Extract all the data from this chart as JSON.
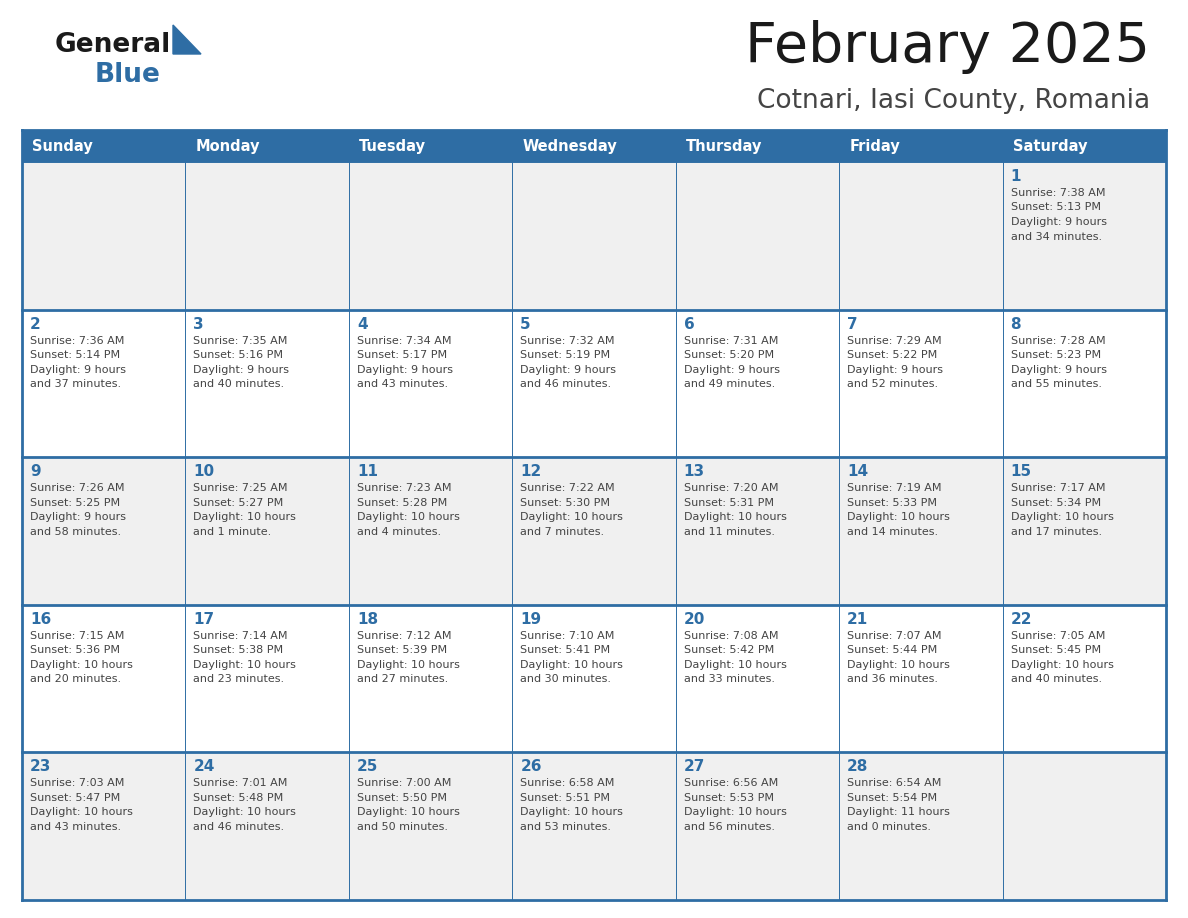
{
  "title": "February 2025",
  "subtitle": "Cotnari, Iasi County, Romania",
  "header_bg": "#2E6DA4",
  "header_text_color": "#FFFFFF",
  "row_bg_odd": "#F0F0F0",
  "row_bg_even": "#FFFFFF",
  "day_number_color": "#2E6DA4",
  "cell_text_color": "#444444",
  "border_color": "#2E6DA4",
  "days_of_week": [
    "Sunday",
    "Monday",
    "Tuesday",
    "Wednesday",
    "Thursday",
    "Friday",
    "Saturday"
  ],
  "logo_triangle_color": "#2E6DA4",
  "weeks": [
    [
      {
        "day": null,
        "lines": []
      },
      {
        "day": null,
        "lines": []
      },
      {
        "day": null,
        "lines": []
      },
      {
        "day": null,
        "lines": []
      },
      {
        "day": null,
        "lines": []
      },
      {
        "day": null,
        "lines": []
      },
      {
        "day": 1,
        "lines": [
          "Sunrise: 7:38 AM",
          "Sunset: 5:13 PM",
          "Daylight: 9 hours",
          "and 34 minutes."
        ]
      }
    ],
    [
      {
        "day": 2,
        "lines": [
          "Sunrise: 7:36 AM",
          "Sunset: 5:14 PM",
          "Daylight: 9 hours",
          "and 37 minutes."
        ]
      },
      {
        "day": 3,
        "lines": [
          "Sunrise: 7:35 AM",
          "Sunset: 5:16 PM",
          "Daylight: 9 hours",
          "and 40 minutes."
        ]
      },
      {
        "day": 4,
        "lines": [
          "Sunrise: 7:34 AM",
          "Sunset: 5:17 PM",
          "Daylight: 9 hours",
          "and 43 minutes."
        ]
      },
      {
        "day": 5,
        "lines": [
          "Sunrise: 7:32 AM",
          "Sunset: 5:19 PM",
          "Daylight: 9 hours",
          "and 46 minutes."
        ]
      },
      {
        "day": 6,
        "lines": [
          "Sunrise: 7:31 AM",
          "Sunset: 5:20 PM",
          "Daylight: 9 hours",
          "and 49 minutes."
        ]
      },
      {
        "day": 7,
        "lines": [
          "Sunrise: 7:29 AM",
          "Sunset: 5:22 PM",
          "Daylight: 9 hours",
          "and 52 minutes."
        ]
      },
      {
        "day": 8,
        "lines": [
          "Sunrise: 7:28 AM",
          "Sunset: 5:23 PM",
          "Daylight: 9 hours",
          "and 55 minutes."
        ]
      }
    ],
    [
      {
        "day": 9,
        "lines": [
          "Sunrise: 7:26 AM",
          "Sunset: 5:25 PM",
          "Daylight: 9 hours",
          "and 58 minutes."
        ]
      },
      {
        "day": 10,
        "lines": [
          "Sunrise: 7:25 AM",
          "Sunset: 5:27 PM",
          "Daylight: 10 hours",
          "and 1 minute."
        ]
      },
      {
        "day": 11,
        "lines": [
          "Sunrise: 7:23 AM",
          "Sunset: 5:28 PM",
          "Daylight: 10 hours",
          "and 4 minutes."
        ]
      },
      {
        "day": 12,
        "lines": [
          "Sunrise: 7:22 AM",
          "Sunset: 5:30 PM",
          "Daylight: 10 hours",
          "and 7 minutes."
        ]
      },
      {
        "day": 13,
        "lines": [
          "Sunrise: 7:20 AM",
          "Sunset: 5:31 PM",
          "Daylight: 10 hours",
          "and 11 minutes."
        ]
      },
      {
        "day": 14,
        "lines": [
          "Sunrise: 7:19 AM",
          "Sunset: 5:33 PM",
          "Daylight: 10 hours",
          "and 14 minutes."
        ]
      },
      {
        "day": 15,
        "lines": [
          "Sunrise: 7:17 AM",
          "Sunset: 5:34 PM",
          "Daylight: 10 hours",
          "and 17 minutes."
        ]
      }
    ],
    [
      {
        "day": 16,
        "lines": [
          "Sunrise: 7:15 AM",
          "Sunset: 5:36 PM",
          "Daylight: 10 hours",
          "and 20 minutes."
        ]
      },
      {
        "day": 17,
        "lines": [
          "Sunrise: 7:14 AM",
          "Sunset: 5:38 PM",
          "Daylight: 10 hours",
          "and 23 minutes."
        ]
      },
      {
        "day": 18,
        "lines": [
          "Sunrise: 7:12 AM",
          "Sunset: 5:39 PM",
          "Daylight: 10 hours",
          "and 27 minutes."
        ]
      },
      {
        "day": 19,
        "lines": [
          "Sunrise: 7:10 AM",
          "Sunset: 5:41 PM",
          "Daylight: 10 hours",
          "and 30 minutes."
        ]
      },
      {
        "day": 20,
        "lines": [
          "Sunrise: 7:08 AM",
          "Sunset: 5:42 PM",
          "Daylight: 10 hours",
          "and 33 minutes."
        ]
      },
      {
        "day": 21,
        "lines": [
          "Sunrise: 7:07 AM",
          "Sunset: 5:44 PM",
          "Daylight: 10 hours",
          "and 36 minutes."
        ]
      },
      {
        "day": 22,
        "lines": [
          "Sunrise: 7:05 AM",
          "Sunset: 5:45 PM",
          "Daylight: 10 hours",
          "and 40 minutes."
        ]
      }
    ],
    [
      {
        "day": 23,
        "lines": [
          "Sunrise: 7:03 AM",
          "Sunset: 5:47 PM",
          "Daylight: 10 hours",
          "and 43 minutes."
        ]
      },
      {
        "day": 24,
        "lines": [
          "Sunrise: 7:01 AM",
          "Sunset: 5:48 PM",
          "Daylight: 10 hours",
          "and 46 minutes."
        ]
      },
      {
        "day": 25,
        "lines": [
          "Sunrise: 7:00 AM",
          "Sunset: 5:50 PM",
          "Daylight: 10 hours",
          "and 50 minutes."
        ]
      },
      {
        "day": 26,
        "lines": [
          "Sunrise: 6:58 AM",
          "Sunset: 5:51 PM",
          "Daylight: 10 hours",
          "and 53 minutes."
        ]
      },
      {
        "day": 27,
        "lines": [
          "Sunrise: 6:56 AM",
          "Sunset: 5:53 PM",
          "Daylight: 10 hours",
          "and 56 minutes."
        ]
      },
      {
        "day": 28,
        "lines": [
          "Sunrise: 6:54 AM",
          "Sunset: 5:54 PM",
          "Daylight: 11 hours",
          "and 0 minutes."
        ]
      },
      {
        "day": null,
        "lines": []
      }
    ]
  ]
}
